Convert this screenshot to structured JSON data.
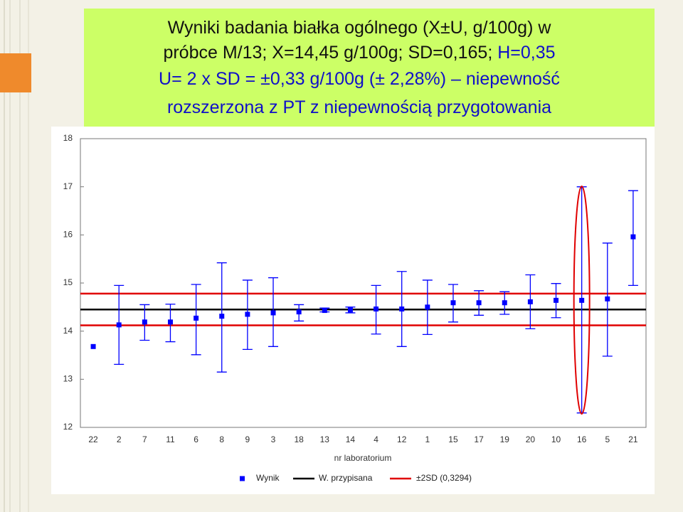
{
  "chart_data": {
    "type": "errorbar",
    "title": [
      [
        {
          "text": "Wyniki badania białka ogólnego (X±U, g/100g) w",
          "color": "#111111"
        }
      ],
      [
        {
          "text": "próbce M/13; X=14,45 g/100g; SD=0,165; ",
          "color": "#111111"
        },
        {
          "text": "H=0,35",
          "color": "#1010c8"
        }
      ],
      [
        {
          "text": "U= 2 x SD = ±0,33 g/100g (± 2,28%) – niepewność",
          "color": "#1010c8"
        }
      ],
      [
        {
          "text": "rozszerzona z PT z niepewnością przygotowania",
          "color": "#1010c8"
        }
      ]
    ],
    "x_label": "nr laboratorium",
    "categories": [
      "22",
      "2",
      "7",
      "11",
      "6",
      "8",
      "9",
      "3",
      "18",
      "13",
      "14",
      "4",
      "12",
      "1",
      "15",
      "17",
      "19",
      "20",
      "10",
      "16",
      "5",
      "21"
    ],
    "series": [
      {
        "name": "Wynik",
        "color": "#0000ff",
        "values": [
          13.68,
          14.13,
          14.19,
          14.19,
          14.27,
          14.31,
          14.35,
          14.38,
          14.4,
          14.43,
          14.44,
          14.46,
          14.46,
          14.5,
          14.59,
          14.59,
          14.59,
          14.61,
          14.64,
          14.64,
          14.67,
          15.96
        ],
        "low": [
          null,
          13.31,
          13.81,
          13.78,
          13.51,
          13.15,
          13.62,
          13.68,
          14.21,
          14.4,
          14.38,
          13.94,
          13.68,
          13.93,
          14.19,
          14.33,
          14.35,
          14.05,
          14.28,
          12.3,
          13.48,
          14.95
        ],
        "high": [
          null,
          14.95,
          14.55,
          14.56,
          14.97,
          15.42,
          15.06,
          15.11,
          14.55,
          14.48,
          14.5,
          14.95,
          15.24,
          15.06,
          14.97,
          14.84,
          14.82,
          15.17,
          14.99,
          17.0,
          15.83,
          16.92
        ]
      }
    ],
    "reference_lines": [
      {
        "name": "W. przypisana",
        "color": "#000000",
        "values": [
          14.45
        ]
      },
      {
        "name": "±2SD (0,3294)",
        "color": "#e00000",
        "values": [
          14.12,
          14.78
        ]
      }
    ],
    "ylim": [
      12,
      18
    ],
    "yticks": [
      12,
      13,
      14,
      15,
      16,
      17,
      18
    ]
  }
}
